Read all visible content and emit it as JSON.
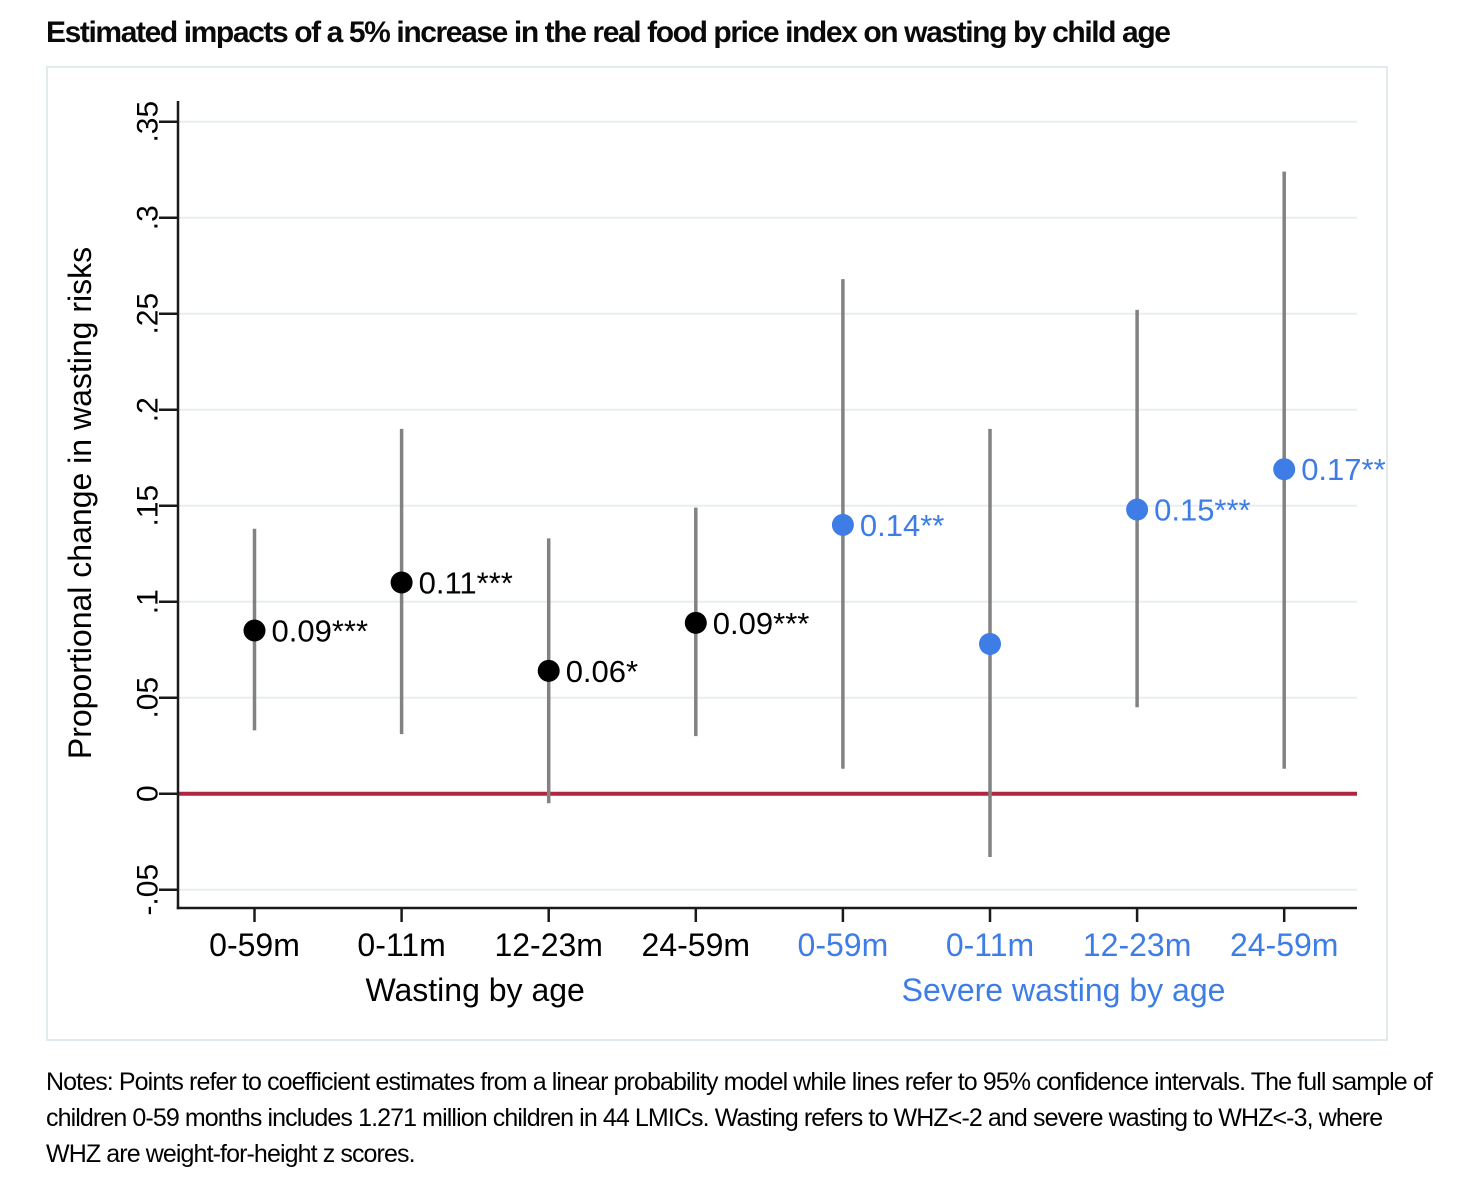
{
  "title": "Estimated impacts of a 5% increase in the real food price index on wasting by child age",
  "notes": "Notes: Points refer to coefficient estimates from a linear probability model while lines refer to 95% confidence intervals. The full sample of children 0-59 months includes 1.271 million children in 44 LMICs. Wasting refers to WHZ<-2 and severe wasting to WHZ<-3, where WHZ are weight-for-height z scores.",
  "colors": {
    "black_series": "#000000",
    "blue_series": "#3e7de6",
    "ci_line": "#828282",
    "zero_line": "#b02540",
    "gridline": "#e7eef0",
    "axis": "#1a1a1a",
    "figure_border": "#e3eaed"
  },
  "chart_data": {
    "type": "scatter",
    "title": "Estimated impacts of a 5% increase in the real food price index on wasting by child age",
    "xlabel": "",
    "ylabel": "Proportional change in wasting risks",
    "ylim": [
      -0.08,
      0.37
    ],
    "yticks": [
      -0.05,
      0,
      0.05,
      0.1,
      0.15,
      0.2,
      0.25,
      0.3,
      0.35
    ],
    "ytick_labels": [
      "-.05",
      "0",
      ".05",
      ".1",
      ".15",
      ".2",
      ".25",
      ".3",
      ".35"
    ],
    "grid": "horizontal",
    "legend_position": "none",
    "zero_reference_line": 0,
    "groups": [
      {
        "label": "Wasting by age",
        "color": "#000000",
        "points": [
          {
            "category": "0-59m",
            "estimate": 0.085,
            "ci_low": 0.033,
            "ci_high": 0.138,
            "label": "0.09***"
          },
          {
            "category": "0-11m",
            "estimate": 0.11,
            "ci_low": 0.031,
            "ci_high": 0.19,
            "label": "0.11***"
          },
          {
            "category": "12-23m",
            "estimate": 0.064,
            "ci_low": -0.005,
            "ci_high": 0.133,
            "label": "0.06*"
          },
          {
            "category": "24-59m",
            "estimate": 0.089,
            "ci_low": 0.03,
            "ci_high": 0.149,
            "label": "0.09***"
          }
        ]
      },
      {
        "label": "Severe wasting by age",
        "color": "#3e7de6",
        "points": [
          {
            "category": "0-59m",
            "estimate": 0.14,
            "ci_low": 0.013,
            "ci_high": 0.268,
            "label": "0.14**"
          },
          {
            "category": "0-11m",
            "estimate": 0.078,
            "ci_low": -0.033,
            "ci_high": 0.19,
            "label": ""
          },
          {
            "category": "12-23m",
            "estimate": 0.148,
            "ci_low": 0.045,
            "ci_high": 0.252,
            "label": "0.15***"
          },
          {
            "category": "24-59m",
            "estimate": 0.169,
            "ci_low": 0.013,
            "ci_high": 0.324,
            "label": "0.17**"
          }
        ]
      }
    ]
  }
}
